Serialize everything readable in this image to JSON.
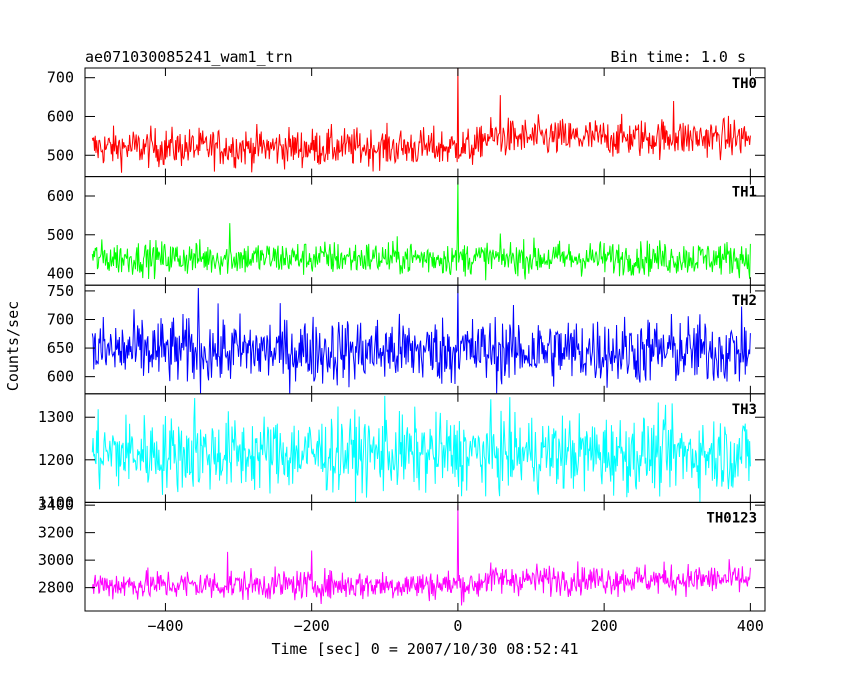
{
  "chart_data": {
    "type": "line",
    "title": "ae071030085241_wam1_trn",
    "subtitle": "Bin time: 1.0 s",
    "xlabel": "Time [sec] 0 = 2007/10/30 08:52:41",
    "ylabel": "Counts/sec",
    "xlim": [
      -510,
      420
    ],
    "x_ticks": [
      -400,
      -200,
      0,
      200,
      400
    ],
    "x_tick_labels": [
      "−400",
      "−200",
      "0",
      "200",
      "400"
    ],
    "x_range": [
      -500,
      400
    ],
    "bin": 1.0,
    "series": [
      {
        "name": "TH0",
        "color": "#ff0000",
        "ylim": [
          445,
          725
        ],
        "y_ticks": [
          500,
          600,
          700
        ],
        "mean": 520,
        "noise": 25,
        "trend": 25,
        "peaks": [
          {
            "x": 0,
            "y": 725
          },
          {
            "x": 58,
            "y": 655
          },
          {
            "x": 295,
            "y": 640
          }
        ]
      },
      {
        "name": "TH1",
        "color": "#00ff00",
        "ylim": [
          370,
          650
        ],
        "y_ticks": [
          400,
          500,
          600
        ],
        "mean": 440,
        "noise": 22,
        "trend": 0,
        "peaks": [
          {
            "x": 0,
            "y": 645
          },
          {
            "x": -312,
            "y": 530
          }
        ]
      },
      {
        "name": "TH2",
        "color": "#0000ff",
        "ylim": [
          570,
          760
        ],
        "y_ticks": [
          600,
          650,
          700,
          750
        ],
        "mean": 645,
        "noise": 30,
        "trend": 0,
        "peaks": [
          {
            "x": -355,
            "y": 755
          },
          {
            "x": 0,
            "y": 760
          }
        ]
      },
      {
        "name": "TH3",
        "color": "#00ffff",
        "ylim": [
          1100,
          1355
        ],
        "y_ticks": [
          1100,
          1200,
          1300
        ],
        "mean": 1215,
        "noise": 45,
        "trend": 0,
        "peaks": [
          {
            "x": -360,
            "y": 1345
          },
          {
            "x": -100,
            "y": 1350
          }
        ]
      },
      {
        "name": "TH0123",
        "color": "#ff00ff",
        "ylim": [
          2630,
          3420
        ],
        "y_ticks": [
          2800,
          3000,
          3200,
          3400
        ],
        "mean": 2820,
        "noise": 55,
        "trend": 40,
        "peaks": [
          {
            "x": 0,
            "y": 3400
          },
          {
            "x": -315,
            "y": 3060
          },
          {
            "x": -200,
            "y": 3070
          }
        ]
      }
    ]
  }
}
